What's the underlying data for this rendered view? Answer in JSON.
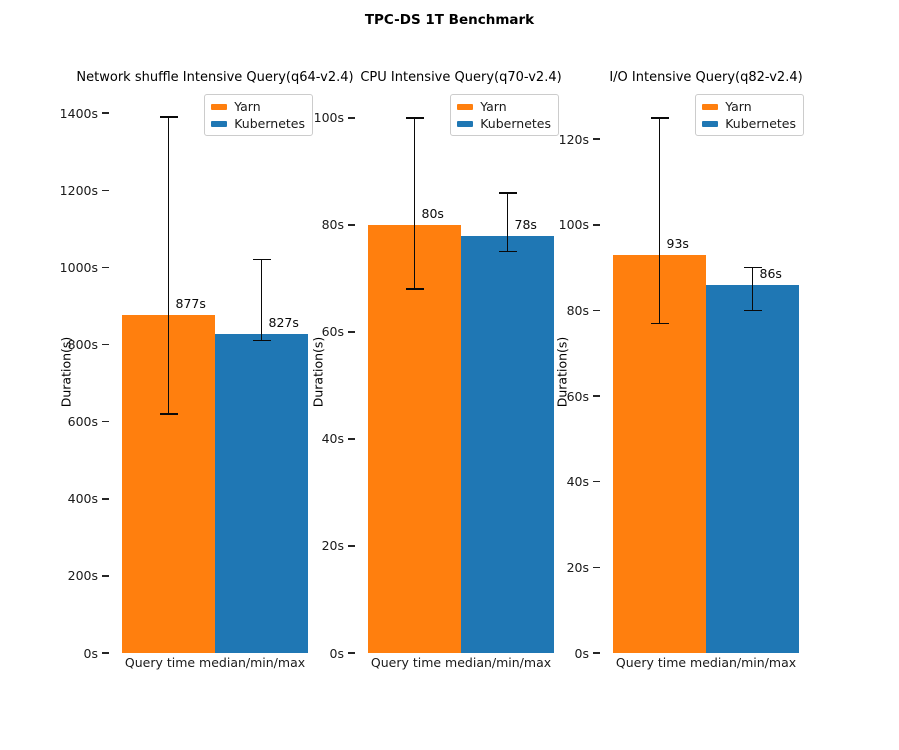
{
  "chart_data": {
    "type": "bar",
    "title": "TPC-DS 1T Benchmark",
    "legend": [
      "Yarn",
      "Kubernetes"
    ],
    "colors": {
      "Yarn": "#ff7f0e",
      "Kubernetes": "#1f77b4"
    },
    "xlabel": "Query time median/min/max",
    "ylabel": "Duration(s)",
    "tick_suffix": "s",
    "legend_position": "upper right",
    "grid": false,
    "error_bars": "min/max",
    "subplots": [
      {
        "title": "Network shuffle Intensive Query(q64-v2.4)",
        "ylim": [
          0,
          1460
        ],
        "yticks": [
          0,
          200,
          400,
          600,
          800,
          1000,
          1200,
          1400
        ],
        "series": [
          {
            "name": "Yarn",
            "median": 877,
            "min": 620,
            "max": 1390,
            "label": "877s"
          },
          {
            "name": "Kubernetes",
            "median": 827,
            "min": 810,
            "max": 1020,
            "label": "827s"
          }
        ]
      },
      {
        "title": "CPU Intensive Query(q70-v2.4)",
        "ylim": [
          0,
          105.2
        ],
        "yticks": [
          0,
          20,
          40,
          60,
          80,
          100
        ],
        "series": [
          {
            "name": "Yarn",
            "median": 80,
            "min": 68,
            "max": 100,
            "label": "80s"
          },
          {
            "name": "Kubernetes",
            "median": 78,
            "min": 75,
            "max": 86,
            "label": "78s"
          }
        ]
      },
      {
        "title": "I/O Intensive Query(q82-v2.4)",
        "ylim": [
          0,
          131.5
        ],
        "yticks": [
          0,
          20,
          40,
          60,
          80,
          100,
          120
        ],
        "series": [
          {
            "name": "Yarn",
            "median": 93,
            "min": 77,
            "max": 125,
            "label": "93s"
          },
          {
            "name": "Kubernetes",
            "median": 86,
            "min": 80,
            "max": 90,
            "label": "86s"
          }
        ]
      }
    ]
  }
}
